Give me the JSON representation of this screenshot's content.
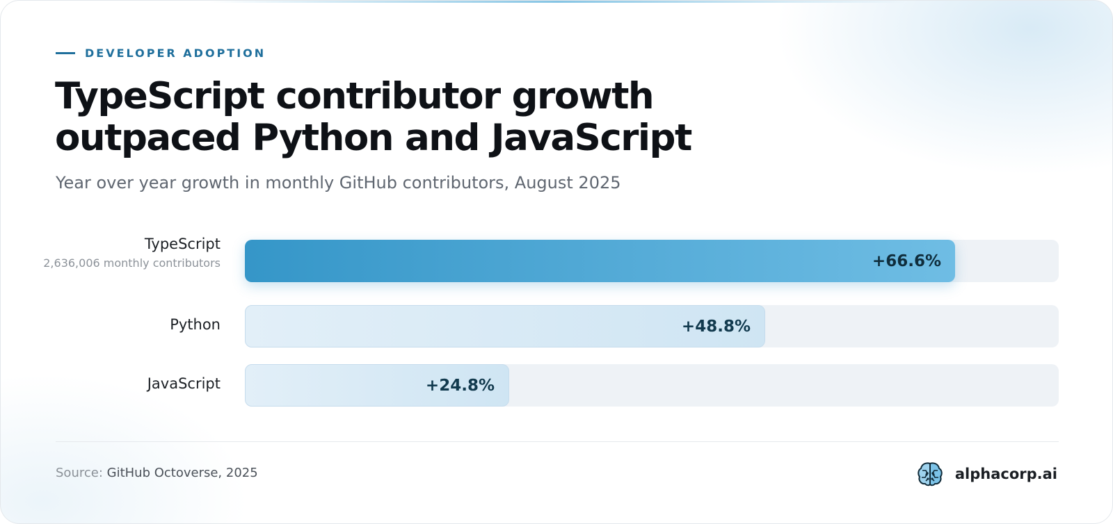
{
  "header": {
    "eyebrow": "DEVELOPER ADOPTION",
    "title": "TypeScript contributor growth outpaced Python and JavaScript",
    "subtitle": "Year over year growth in monthly GitHub contributors, August 2025"
  },
  "chart_data": {
    "type": "bar",
    "orientation": "horizontal",
    "title": "TypeScript contributor growth outpaced Python and JavaScript",
    "subtitle": "Year over year growth in monthly GitHub contributors, August 2025",
    "categories": [
      "TypeScript",
      "Python",
      "JavaScript"
    ],
    "values": [
      66.6,
      48.8,
      24.8
    ],
    "value_labels": [
      "+66.6%",
      "+48.8%",
      "+24.8%"
    ],
    "notes": [
      "2,636,006 monthly contributors",
      "",
      ""
    ],
    "highlight": "TypeScript",
    "xlim": [
      0,
      80
    ],
    "grid": false,
    "legend": "none",
    "colors": {
      "highlight": "#3596c8",
      "muted": "#d6e9f5",
      "track": "#eef2f6",
      "accent": "#1f6f9c"
    }
  },
  "footer": {
    "source_label": "Source:",
    "source_value": "GitHub Octoverse, 2025",
    "brand_name": "alphacorp.ai",
    "brand_icon": "brain-icon"
  }
}
